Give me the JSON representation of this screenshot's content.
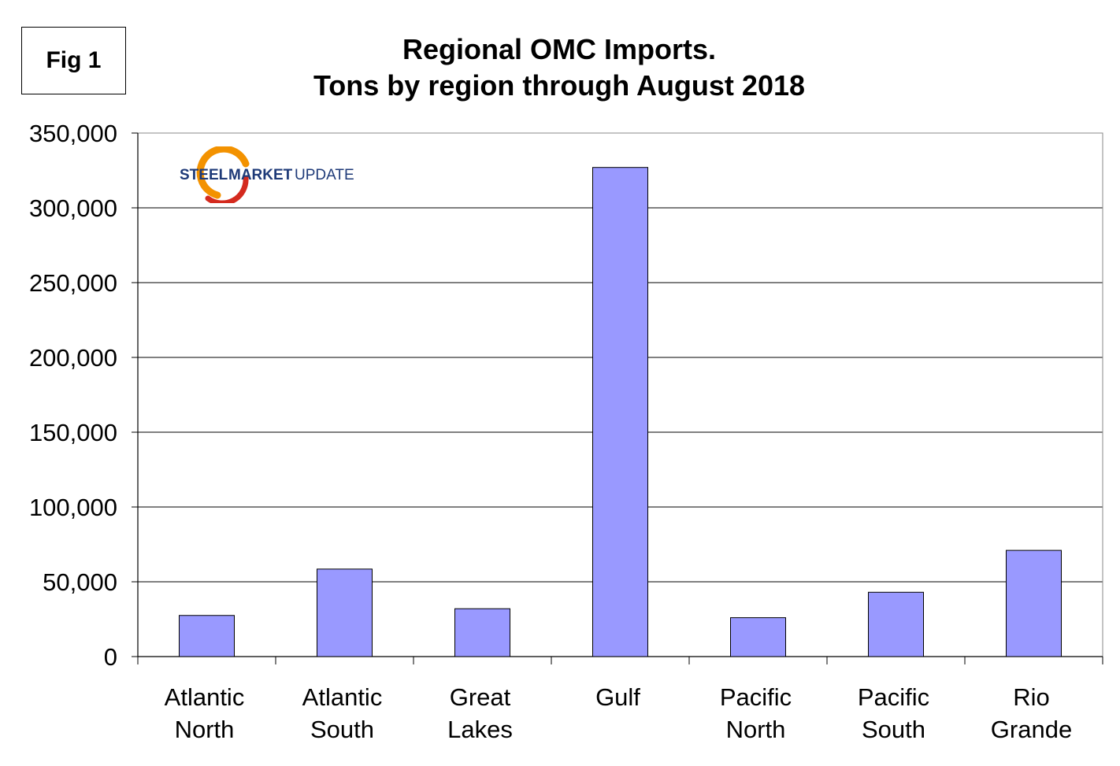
{
  "figure_label": "Fig 1",
  "logo": {
    "text_steel": "STEEL",
    "text_market": "MARKET",
    "text_update": "UPDATE",
    "colors": {
      "navy": "#1e3a78",
      "orange": "#f39200",
      "red": "#d42a1e"
    }
  },
  "chart_data": {
    "type": "bar",
    "title": "Regional OMC Imports.",
    "subtitle": "Tons by region through August 2018",
    "xlabel": "",
    "ylabel": "",
    "categories": [
      [
        "Atlantic",
        "North"
      ],
      [
        "Atlantic",
        "South"
      ],
      [
        "Great",
        "Lakes"
      ],
      [
        "Gulf"
      ],
      [
        "Pacific",
        "North"
      ],
      [
        "Pacific",
        "South"
      ],
      [
        "Rio",
        "Grande"
      ]
    ],
    "values": [
      27500,
      58500,
      32000,
      327000,
      26000,
      43000,
      71000
    ],
    "ylim": [
      0,
      350000
    ],
    "yticks": [
      "0",
      "50,000",
      "100,000",
      "150,000",
      "200,000",
      "250,000",
      "300,000",
      "350,000"
    ],
    "grid": true,
    "legend": "none",
    "bar_color": "#9999ff",
    "bar_border": "#000000"
  }
}
